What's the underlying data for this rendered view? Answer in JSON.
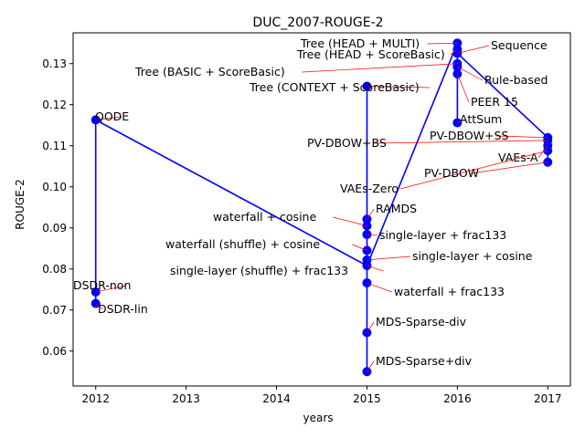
{
  "chart_data": {
    "type": "line",
    "title": "DUC_2007-ROUGE-2",
    "xlabel": "years",
    "ylabel": "ROUGE-2",
    "xlim": [
      2011.75,
      2017.25
    ],
    "ylim": [
      0.0515,
      0.1375
    ],
    "xticks": [
      2012,
      2013,
      2014,
      2015,
      2016,
      2017
    ],
    "xtick_labels": [
      "2012",
      "2013",
      "2014",
      "2015",
      "2016",
      "2017"
    ],
    "yticks": [
      0.06,
      0.07,
      0.08,
      0.09,
      0.1,
      0.11,
      0.12,
      0.13
    ],
    "ytick_labels": [
      "0.06",
      "0.07",
      "0.08",
      "0.09",
      "0.10",
      "0.11",
      "0.12",
      "0.13"
    ],
    "line_color": "#0000ff",
    "arrow_color": "#ff0000",
    "grid": false,
    "points": [
      {
        "name": "QODE",
        "x": 2012,
        "y": 0.1163
      },
      {
        "name": "DSDR-non",
        "x": 2012,
        "y": 0.0744
      },
      {
        "name": "DSDR-lin",
        "x": 2012,
        "y": 0.0716
      },
      {
        "name": "Tree (CONTEXT + ScoreBasic)",
        "x": 2015,
        "y": 0.1245
      },
      {
        "name": "RAMDS",
        "x": 2015,
        "y": 0.0921
      },
      {
        "name": "waterfall + cosine",
        "x": 2015,
        "y": 0.0905
      },
      {
        "name": "single-layer + frac133",
        "x": 2015,
        "y": 0.0884
      },
      {
        "name": "waterfall (shuffle) + cosine",
        "x": 2015,
        "y": 0.0845
      },
      {
        "name": "single-layer + cosine",
        "x": 2015,
        "y": 0.0822
      },
      {
        "name": "single-layer (shuffle) + frac133",
        "x": 2015,
        "y": 0.0808
      },
      {
        "name": "waterfall + frac133",
        "x": 2015,
        "y": 0.0766
      },
      {
        "name": "MDS-Sparse-div",
        "x": 2015,
        "y": 0.0645
      },
      {
        "name": "MDS-Sparse+div",
        "x": 2015,
        "y": 0.055
      },
      {
        "name": "Tree (HEAD + MULTI)",
        "x": 2016,
        "y": 0.135
      },
      {
        "name": "Tree (HEAD + ScoreBasic)",
        "x": 2016,
        "y": 0.1335
      },
      {
        "name": "Sequence",
        "x": 2016,
        "y": 0.1325
      },
      {
        "name": "Tree (BASIC + ScoreBasic)",
        "x": 2016,
        "y": 0.13
      },
      {
        "name": "Rule-based",
        "x": 2016,
        "y": 0.1292
      },
      {
        "name": "PEER 15",
        "x": 2016,
        "y": 0.1275
      },
      {
        "name": "AttSum",
        "x": 2016,
        "y": 0.1156
      },
      {
        "name": "PV-DBOW+SS",
        "x": 2017,
        "y": 0.112
      },
      {
        "name": "PV-DBOW+BS",
        "x": 2017,
        "y": 0.1113
      },
      {
        "name": "VAEs-A",
        "x": 2017,
        "y": 0.11
      },
      {
        "name": "VAEs-Zero",
        "x": 2017,
        "y": 0.1088
      },
      {
        "name": "PV-DBOW",
        "x": 2017,
        "y": 0.106
      }
    ],
    "path": [
      {
        "x": 2012,
        "y": 0.0716
      },
      {
        "x": 2012,
        "y": 0.1163
      },
      {
        "x": 2015,
        "y": 0.0808
      },
      {
        "x": 2015,
        "y": 0.055
      },
      {
        "x": 2015,
        "y": 0.1245
      },
      {
        "x": 2015,
        "y": 0.0808
      },
      {
        "x": 2016,
        "y": 0.135
      },
      {
        "x": 2016,
        "y": 0.1156
      },
      {
        "x": 2016,
        "y": 0.1325
      },
      {
        "x": 2017,
        "y": 0.112
      },
      {
        "x": 2017,
        "y": 0.106
      }
    ]
  }
}
